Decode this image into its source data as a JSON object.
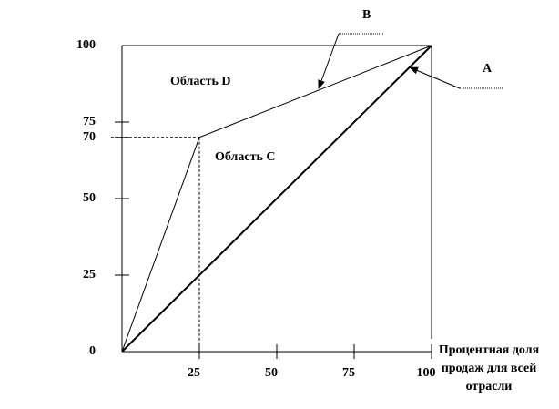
{
  "chart_data": {
    "type": "line",
    "x_label": [
      "Процентная доля",
      "продаж для всей",
      "отрасли"
    ],
    "annotations": [
      "Область D",
      "Область C"
    ],
    "xlim": [
      0,
      100
    ],
    "ylim": [
      0,
      100
    ],
    "xticks": [
      25,
      50,
      75,
      100
    ],
    "yticks": [
      0,
      25,
      50,
      70,
      75,
      100
    ],
    "series": [
      {
        "name": "A",
        "color": "#000000",
        "x": [
          0,
          100
        ],
        "values": [
          0,
          100
        ]
      },
      {
        "name": "B",
        "color": "#000000",
        "x": [
          0,
          25,
          100
        ],
        "values": [
          0,
          70,
          100
        ]
      }
    ]
  }
}
